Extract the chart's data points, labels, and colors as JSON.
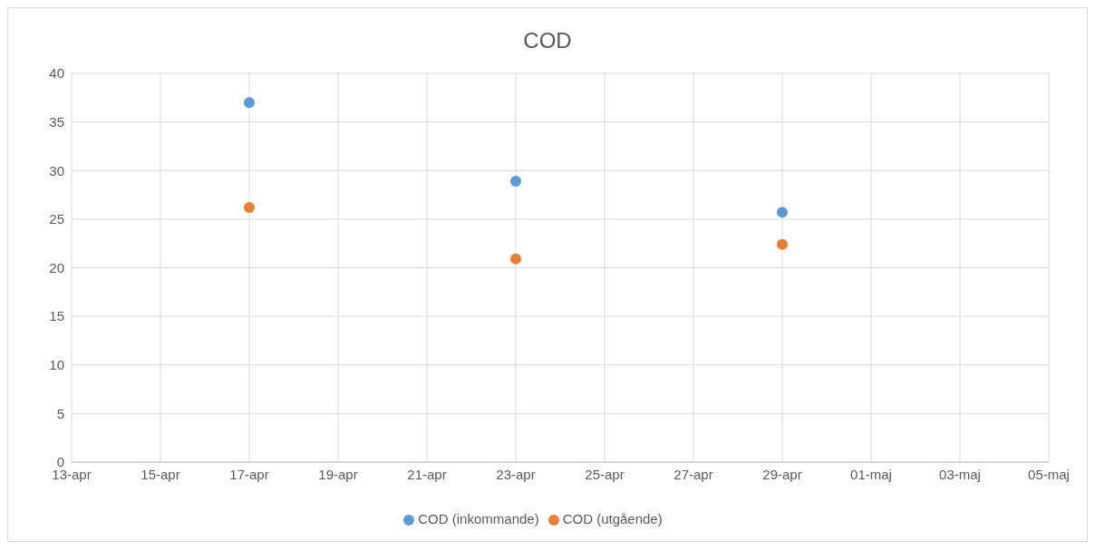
{
  "chart_data": {
    "type": "scatter",
    "title": "COD",
    "x": [
      "--04-17",
      "--04-23",
      "--04-29"
    ],
    "series": [
      {
        "name": "COD (inkommande)",
        "color": "#5b9bd5",
        "values": [
          37,
          28.9,
          25.7
        ]
      },
      {
        "name": "COD (utgående)",
        "color": "#ed7d31",
        "values": [
          26.2,
          20.9,
          22.4
        ]
      }
    ],
    "xlim": [
      "--04-13",
      "--05-05"
    ],
    "xticks": [
      {
        "value": "--04-13",
        "label": "13-apr"
      },
      {
        "value": "--04-15",
        "label": "15-apr"
      },
      {
        "value": "--04-17",
        "label": "17-apr"
      },
      {
        "value": "--04-19",
        "label": "19-apr"
      },
      {
        "value": "--04-21",
        "label": "21-apr"
      },
      {
        "value": "--04-23",
        "label": "23-apr"
      },
      {
        "value": "--04-25",
        "label": "25-apr"
      },
      {
        "value": "--04-27",
        "label": "27-apr"
      },
      {
        "value": "--04-29",
        "label": "29-apr"
      },
      {
        "value": "--05-01",
        "label": "01-maj"
      },
      {
        "value": "--05-03",
        "label": "03-maj"
      },
      {
        "value": "--05-05",
        "label": "05-maj"
      }
    ],
    "ylim": [
      0,
      40
    ],
    "yticks": [
      0,
      5,
      10,
      15,
      20,
      25,
      30,
      35,
      40
    ],
    "grid": true,
    "legend": "bottom",
    "marker": "circle"
  }
}
